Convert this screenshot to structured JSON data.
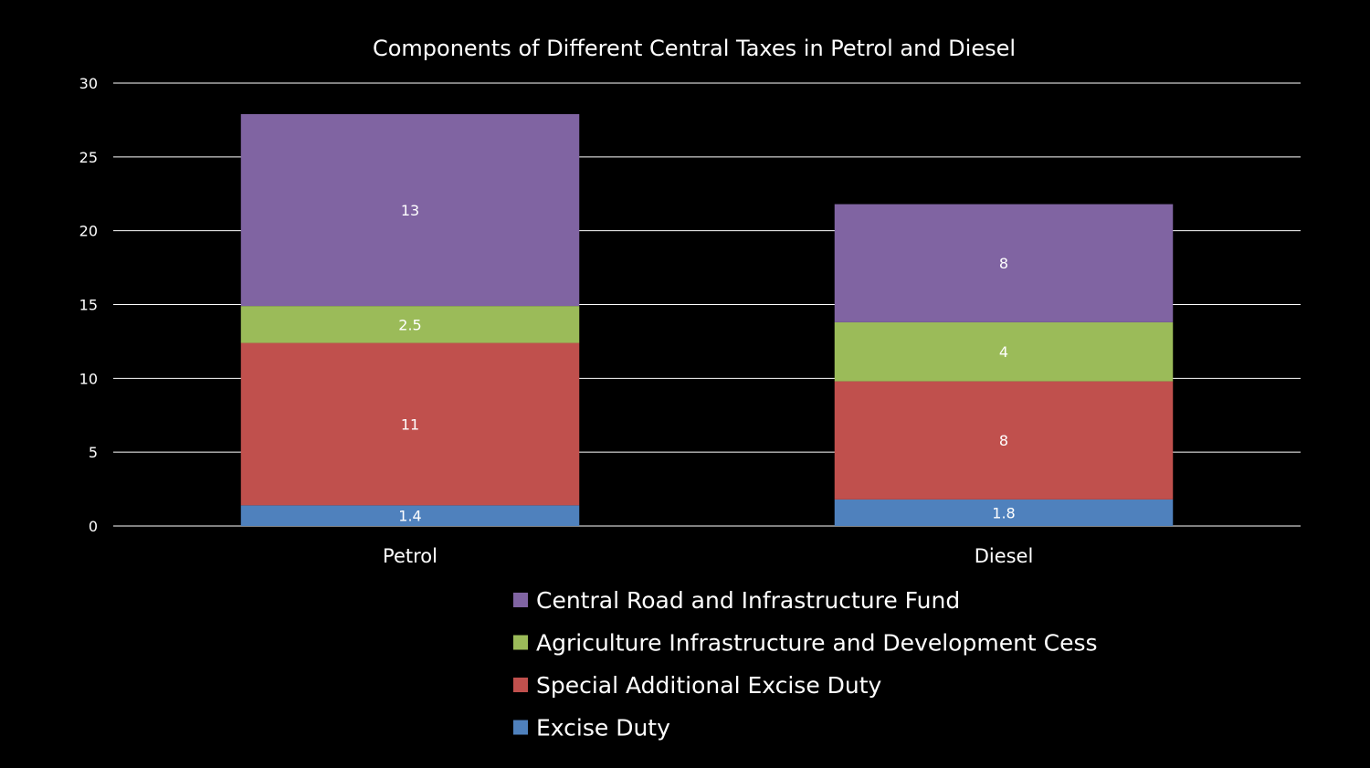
{
  "chart_data": {
    "type": "bar",
    "stacked": true,
    "title": "Components of Different Central Taxes in Petrol and Diesel",
    "xlabel": "",
    "ylabel": "",
    "categories": [
      "Petrol",
      "Diesel"
    ],
    "ylim": [
      0,
      30
    ],
    "yticks": [
      0,
      5,
      10,
      15,
      20,
      25,
      30
    ],
    "grid": true,
    "legend_position": "bottom",
    "series": [
      {
        "name": "Excise Duty",
        "values": [
          1.4,
          1.8
        ],
        "labels": [
          "1.4",
          "1.8"
        ],
        "color": "#4f81bd"
      },
      {
        "name": "Special Additional Excise Duty",
        "values": [
          11,
          8
        ],
        "labels": [
          "11",
          "8"
        ],
        "color": "#c0504d"
      },
      {
        "name": "Agriculture Infrastructure and Development Cess",
        "values": [
          2.5,
          4
        ],
        "labels": [
          "2.5",
          "4"
        ],
        "color": "#9bbb59"
      },
      {
        "name": " Central Road and Infrastructure Fund",
        "values": [
          13,
          8
        ],
        "labels": [
          "13",
          "8"
        ],
        "color": "#8064a2"
      }
    ]
  }
}
